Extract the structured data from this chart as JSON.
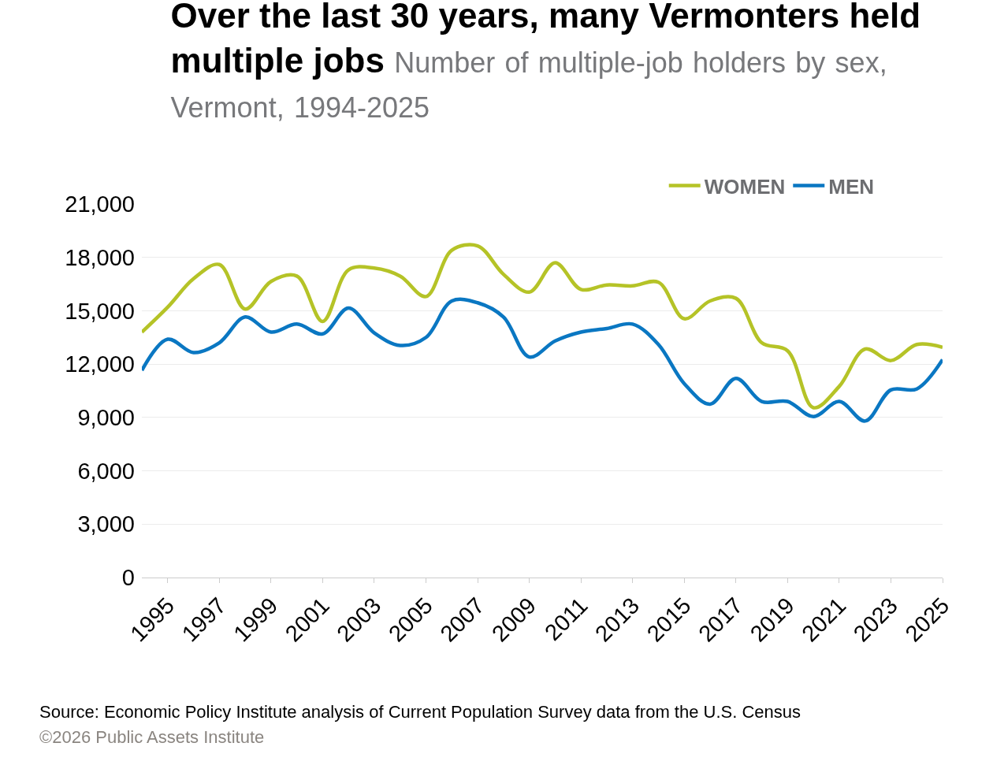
{
  "chart_data": {
    "type": "line",
    "title": "Over the last 30 years, many Vermonters held multiple jobs",
    "subtitle": "Number of multiple-job holders by sex, Vermont, 1994-2025",
    "x": [
      1994,
      1995,
      1996,
      1997,
      1998,
      1999,
      2000,
      2001,
      2002,
      2003,
      2004,
      2005,
      2006,
      2007,
      2008,
      2009,
      2010,
      2011,
      2012,
      2013,
      2014,
      2015,
      2016,
      2017,
      2018,
      2019,
      2020,
      2021,
      2022,
      2023,
      2024,
      2025
    ],
    "series": [
      {
        "name": "WOMEN",
        "color": "#b5c327",
        "values": [
          13800,
          15200,
          16800,
          17600,
          15100,
          16650,
          16950,
          14400,
          17300,
          17400,
          16950,
          15800,
          18400,
          18650,
          17050,
          16050,
          17700,
          16200,
          16450,
          16400,
          16600,
          14550,
          15550,
          15700,
          13200,
          12750,
          9550,
          10750,
          12850,
          12200,
          13100,
          12950
        ]
      },
      {
        "name": "MEN",
        "color": "#0a77c2",
        "values": [
          11650,
          13400,
          12650,
          13200,
          14650,
          13800,
          14250,
          13700,
          15150,
          13750,
          13050,
          13500,
          15550,
          15450,
          14650,
          12400,
          13300,
          13800,
          14000,
          14250,
          13100,
          10900,
          9750,
          11200,
          9900,
          9900,
          9050,
          9900,
          8800,
          10550,
          10600,
          12250
        ]
      }
    ],
    "xlim": [
      1994,
      2025
    ],
    "xticks": [
      1995,
      1997,
      1999,
      2001,
      2003,
      2005,
      2007,
      2009,
      2011,
      2013,
      2015,
      2017,
      2019,
      2021,
      2023,
      2025
    ],
    "ylim": [
      0,
      21000
    ],
    "yticks": [
      {
        "value": 0,
        "label": "0"
      },
      {
        "value": 3000,
        "label": "3,000"
      },
      {
        "value": 6000,
        "label": "6,000"
      },
      {
        "value": 9000,
        "label": "9,000"
      },
      {
        "value": 12000,
        "label": "12,000"
      },
      {
        "value": 15000,
        "label": "15,000"
      },
      {
        "value": 18000,
        "label": "18,000"
      },
      {
        "value": 21000,
        "label": "21,000"
      }
    ],
    "grid": "y",
    "legend": "top right",
    "marker": "none",
    "line_style": "solid",
    "annotations": [
      "Source: Economic Policy Institute analysis of Current Population Survey data from the U.S. Census",
      "©2026 Public Assets Institute"
    ]
  }
}
